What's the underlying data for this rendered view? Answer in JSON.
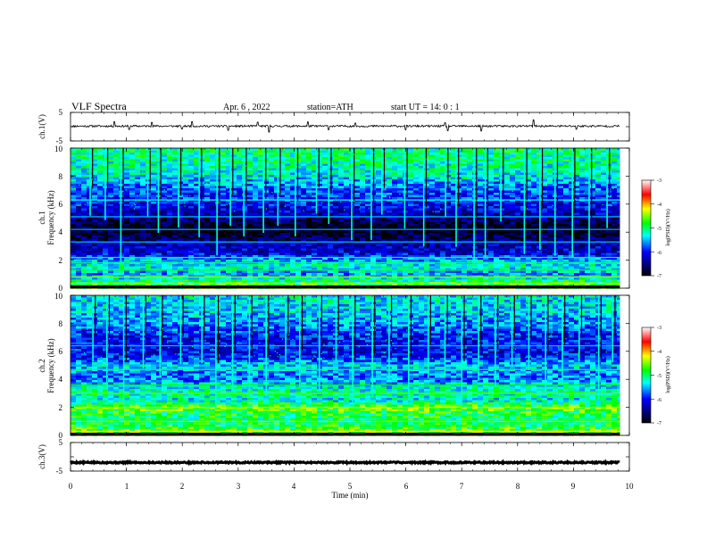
{
  "header": {
    "title": "VLF  Spectra",
    "date": "Apr. 6  , 2022",
    "station": "station=ATH",
    "start": "start  UT  =    14: 0   : 1"
  },
  "chart_data": [
    {
      "type": "line",
      "panel": "ch1-waveform",
      "ylabel": "ch.1(V)",
      "ylim": [
        -5,
        5
      ],
      "y_ticks": [
        "5",
        "-5"
      ],
      "x_range": [
        0,
        10
      ],
      "data_end": 9.83,
      "baseline": 0.2,
      "noise_amplitude": 0.35,
      "spikes": [
        {
          "t": 0.78,
          "v": 1.6
        },
        {
          "t": 1.05,
          "v": -1.2
        },
        {
          "t": 1.45,
          "v": 1.3
        },
        {
          "t": 2.0,
          "v": -1.0
        },
        {
          "t": 2.18,
          "v": 1.6
        },
        {
          "t": 2.82,
          "v": -1.5
        },
        {
          "t": 3.35,
          "v": 1.4
        },
        {
          "t": 3.55,
          "v": -2.1
        },
        {
          "t": 4.25,
          "v": 1.5
        },
        {
          "t": 4.62,
          "v": -1.3
        },
        {
          "t": 5.1,
          "v": 1.1
        },
        {
          "t": 6.0,
          "v": -1.3
        },
        {
          "t": 6.7,
          "v": 1.2
        },
        {
          "t": 6.75,
          "v": -1.6
        },
        {
          "t": 7.35,
          "v": -1.7
        },
        {
          "t": 8.28,
          "v": 2.2
        },
        {
          "t": 9.05,
          "v": -1.1
        }
      ]
    },
    {
      "type": "heatmap",
      "panel": "ch1-spectrogram",
      "ylabel_line1": "ch.1",
      "ylabel_line2": "Frequency (kHz)",
      "ylim": [
        0,
        10
      ],
      "y_ticks": [
        "0",
        "2",
        "4",
        "6",
        "8",
        "10"
      ],
      "x_range": [
        0,
        10
      ],
      "data_end": 9.83,
      "colorbar": {
        "label": "log(PSD)(V²/Hz)",
        "range": [
          -7,
          -3
        ],
        "ticks": [
          "-3",
          "-4",
          "-5",
          "-6",
          "-7"
        ]
      },
      "profile": [
        {
          "f": 0.0,
          "v": -4.6
        },
        {
          "f": 0.5,
          "v": -5.0
        },
        {
          "f": 1.0,
          "v": -5.6
        },
        {
          "f": 1.5,
          "v": -5.2
        },
        {
          "f": 2.0,
          "v": -5.5
        },
        {
          "f": 2.5,
          "v": -6.2
        },
        {
          "f": 3.0,
          "v": -6.3
        },
        {
          "f": 3.5,
          "v": -6.6
        },
        {
          "f": 4.0,
          "v": -6.9
        },
        {
          "f": 4.5,
          "v": -6.9
        },
        {
          "f": 5.0,
          "v": -6.5
        },
        {
          "f": 5.5,
          "v": -6.2
        },
        {
          "f": 6.0,
          "v": -6.0
        },
        {
          "f": 7.0,
          "v": -5.8
        },
        {
          "f": 8.0,
          "v": -5.3
        },
        {
          "f": 9.0,
          "v": -5.1
        },
        {
          "f": 10.0,
          "v": -5.0
        }
      ],
      "lines": [
        {
          "f": 0.35,
          "v": -4.3
        },
        {
          "f": 0.8,
          "v": -4.5
        },
        {
          "f": 1.3,
          "v": -4.9
        },
        {
          "f": 1.8,
          "v": -5.1
        },
        {
          "f": 2.2,
          "v": -5.0
        },
        {
          "f": 3.3,
          "v": -5.5
        },
        {
          "f": 4.2,
          "v": -5.6
        },
        {
          "f": 5.1,
          "v": -5.5
        },
        {
          "f": 6.3,
          "v": -5.3
        }
      ],
      "events": [
        0.35,
        0.62,
        0.9,
        1.38,
        1.57,
        1.93,
        2.3,
        2.62,
        2.86,
        3.1,
        3.45,
        3.71,
        4.02,
        4.4,
        4.62,
        5.03,
        5.38,
        5.57,
        5.98,
        6.32,
        6.71,
        6.9,
        7.22,
        7.42,
        7.7,
        8.12,
        8.4,
        8.67,
        8.98,
        9.28,
        9.6
      ]
    },
    {
      "type": "heatmap",
      "panel": "ch2-spectrogram",
      "ylabel_line1": "ch.2",
      "ylabel_line2": "Frequency (kHz)",
      "ylim": [
        0,
        10
      ],
      "y_ticks": [
        "0",
        "2",
        "4",
        "6",
        "8",
        "10"
      ],
      "x_range": [
        0,
        10
      ],
      "data_end": 9.83,
      "colorbar": {
        "label": "log(PSD)(V²/Hz)",
        "range": [
          -7,
          -3
        ],
        "ticks": [
          "-3",
          "-4",
          "-5",
          "-6",
          "-7"
        ]
      },
      "profile": [
        {
          "f": 0.0,
          "v": -4.4
        },
        {
          "f": 0.5,
          "v": -4.8
        },
        {
          "f": 1.0,
          "v": -5.0
        },
        {
          "f": 1.5,
          "v": -4.9
        },
        {
          "f": 2.0,
          "v": -4.6
        },
        {
          "f": 2.5,
          "v": -5.3
        },
        {
          "f": 3.0,
          "v": -5.1
        },
        {
          "f": 3.5,
          "v": -5.3
        },
        {
          "f": 4.0,
          "v": -5.7
        },
        {
          "f": 4.5,
          "v": -5.6
        },
        {
          "f": 5.0,
          "v": -5.4
        },
        {
          "f": 5.5,
          "v": -5.9
        },
        {
          "f": 6.0,
          "v": -6.1
        },
        {
          "f": 7.0,
          "v": -6.0
        },
        {
          "f": 8.0,
          "v": -5.6
        },
        {
          "f": 9.0,
          "v": -5.4
        },
        {
          "f": 10.0,
          "v": -5.3
        }
      ],
      "lines": [
        {
          "f": 0.3,
          "v": -4.1
        },
        {
          "f": 1.0,
          "v": -4.5
        },
        {
          "f": 2.0,
          "v": -4.3
        },
        {
          "f": 3.0,
          "v": -4.6
        },
        {
          "f": 3.6,
          "v": -4.8
        },
        {
          "f": 4.7,
          "v": -5.0
        },
        {
          "f": 6.4,
          "v": -5.5
        }
      ],
      "events": [
        0.4,
        0.65,
        0.95,
        1.3,
        1.6,
        1.97,
        2.35,
        2.6,
        2.9,
        3.2,
        3.5,
        3.85,
        4.1,
        4.45,
        4.75,
        5.05,
        5.4,
        5.7,
        6.05,
        6.4,
        6.7,
        7.0,
        7.3,
        7.6,
        7.9,
        8.2,
        8.5,
        8.8,
        9.1,
        9.45,
        9.7
      ]
    },
    {
      "type": "line",
      "panel": "ch3-waveform",
      "ylabel": "ch.3(V)",
      "ylim": [
        -5,
        5
      ],
      "y_ticks": [
        "5",
        "-5"
      ],
      "x_range": [
        0,
        10
      ],
      "data_end": 9.83,
      "baseline": -2.0,
      "noise_amplitude": 0.25,
      "xlabel": "Time  (min)",
      "x_ticks": [
        "0",
        "1",
        "2",
        "3",
        "4",
        "5",
        "6",
        "7",
        "8",
        "9",
        "10"
      ]
    }
  ]
}
